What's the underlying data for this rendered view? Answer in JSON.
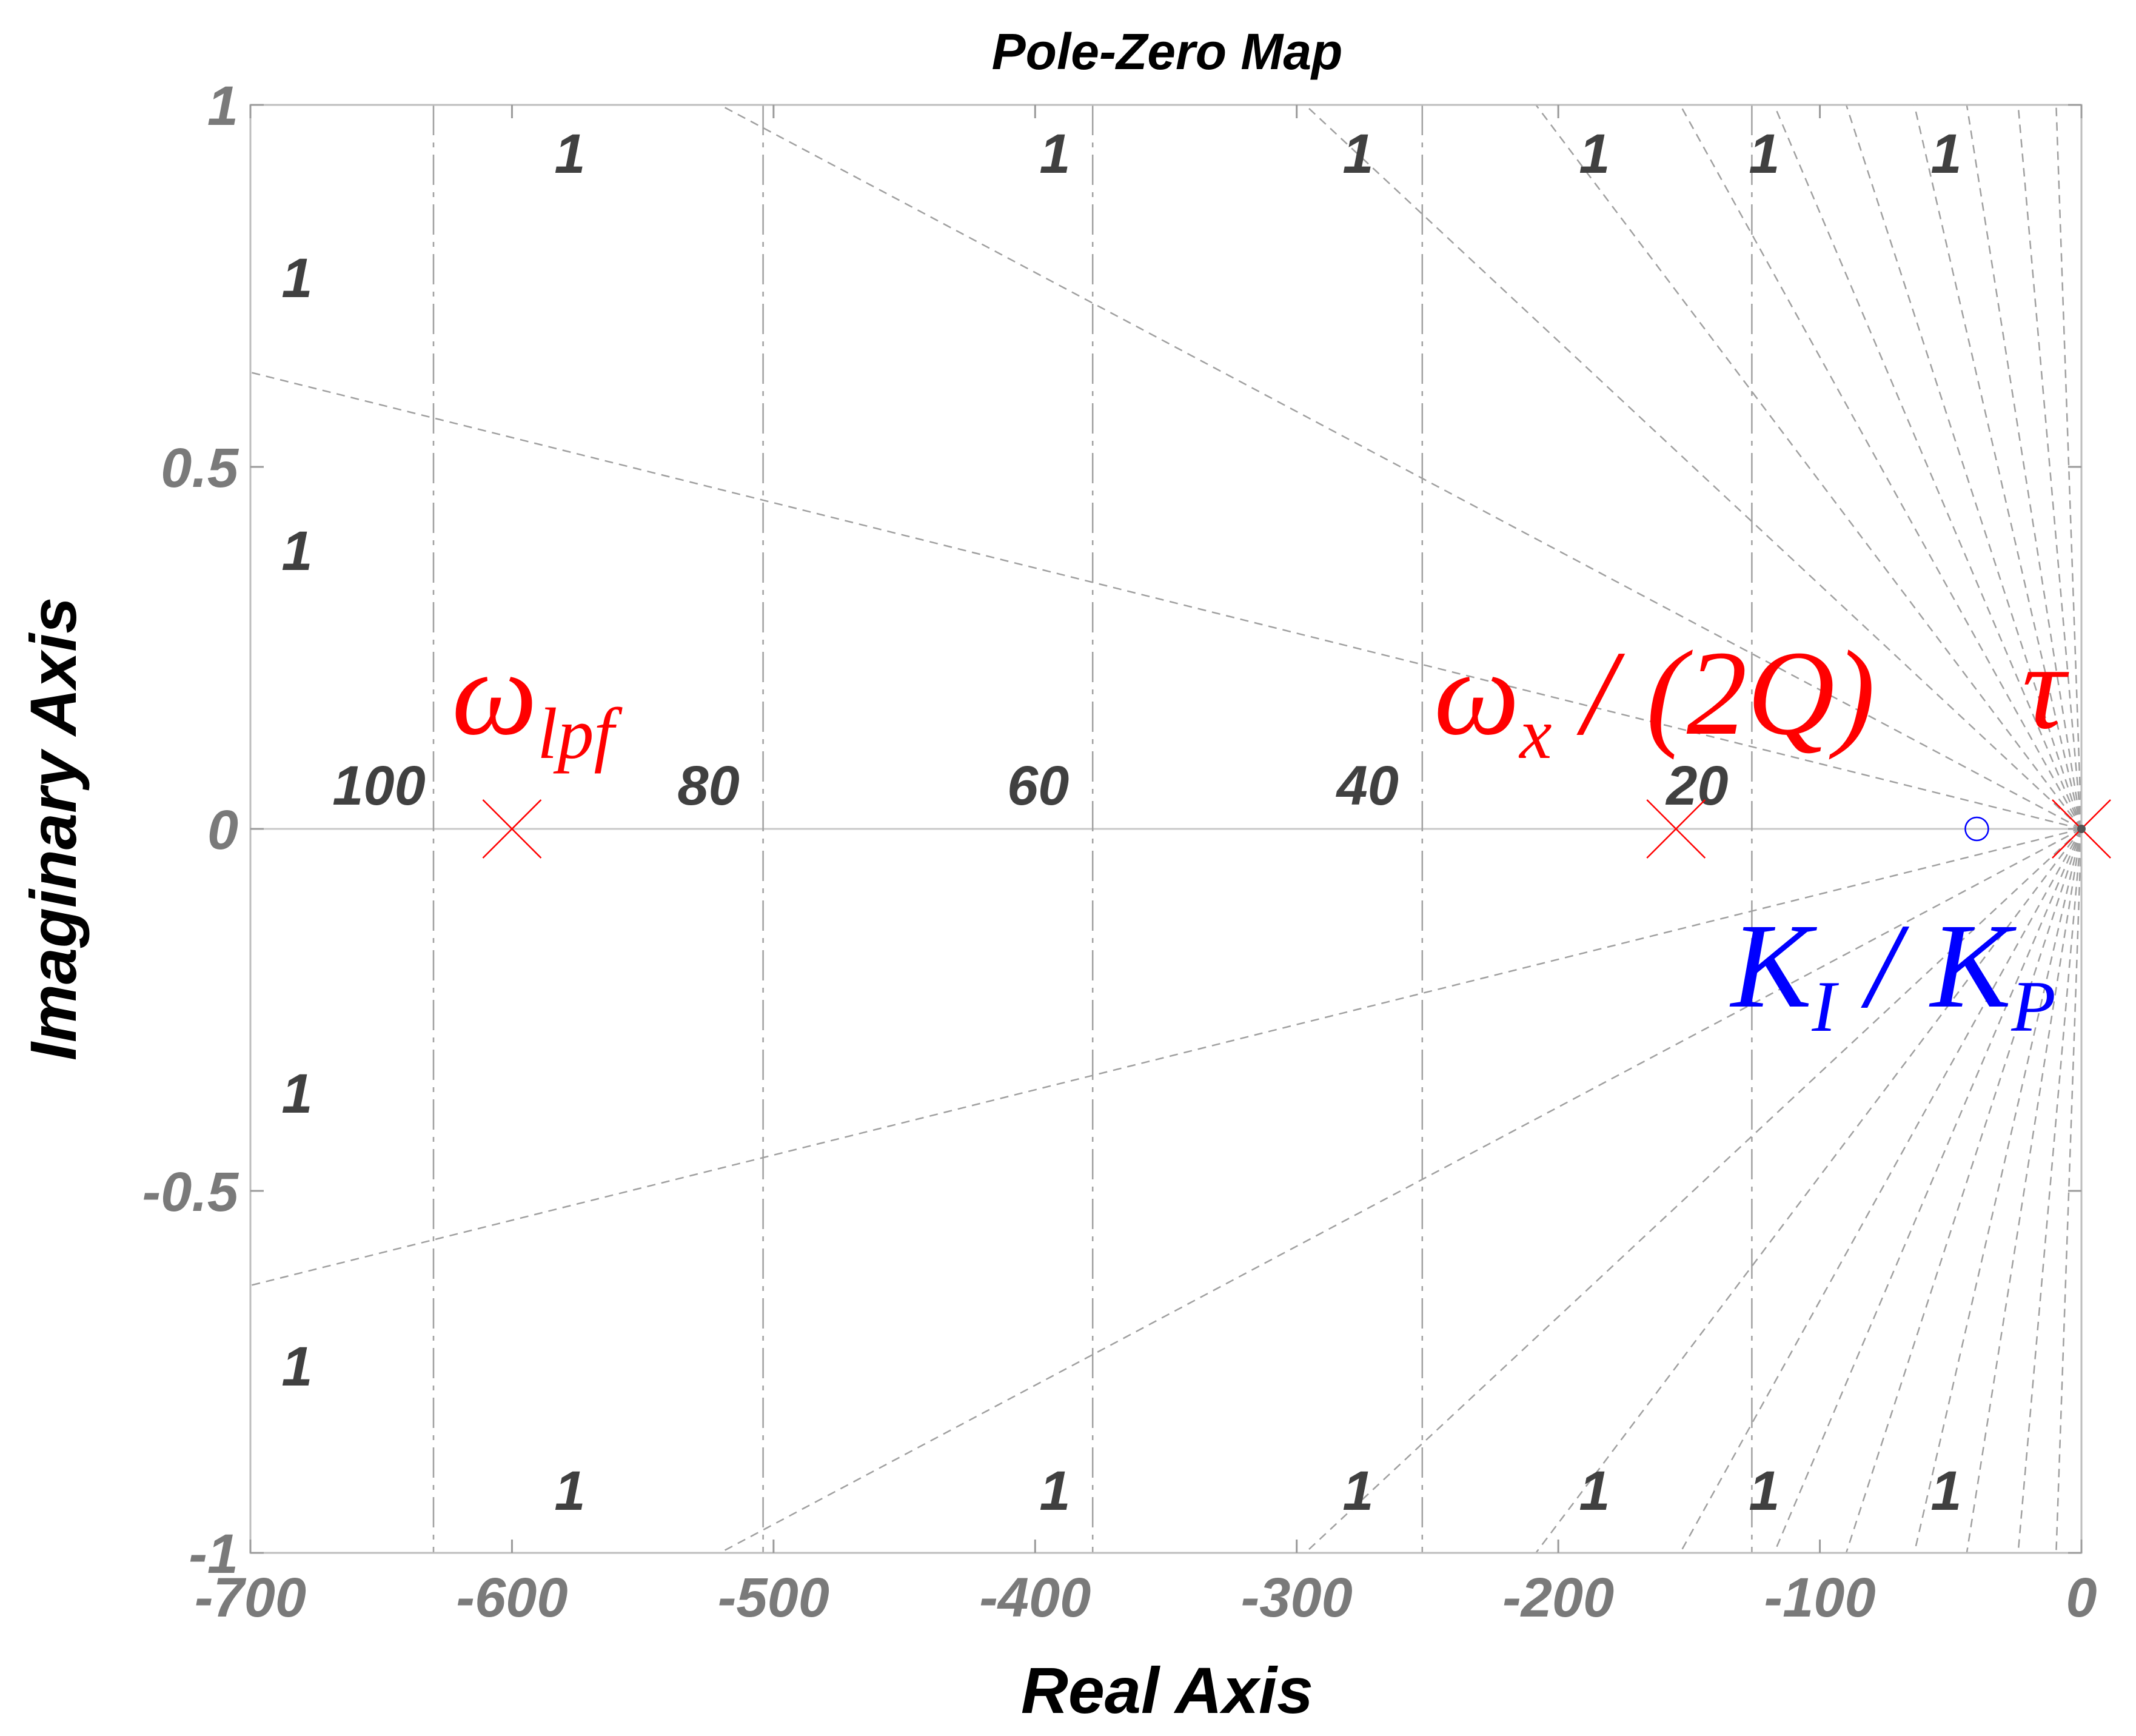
{
  "chart_data": {
    "type": "scatter",
    "title": "Pole-Zero Map",
    "xlabel": "Real Axis",
    "ylabel": "Imaginary Axis",
    "xlim": [
      -700,
      0
    ],
    "ylim": [
      -1,
      1
    ],
    "x_ticks": [
      -700,
      -600,
      -500,
      -400,
      -300,
      -200,
      -100,
      0
    ],
    "x_tick_labels": [
      "-700",
      "-600",
      "-500",
      "-400",
      "-300",
      "-200",
      "-100",
      "0"
    ],
    "y_ticks": [
      -1,
      -0.5,
      0,
      0.5,
      1
    ],
    "y_tick_labels": [
      "-1",
      "-0.5",
      "0",
      "0.5",
      "1"
    ],
    "grid": true,
    "poles": [
      {
        "x": -600,
        "y": 0
      },
      {
        "x": -155,
        "y": 0
      },
      {
        "x": 0,
        "y": 0
      }
    ],
    "zeros": [
      {
        "x": -40,
        "y": 0
      }
    ],
    "frequency_grid": [
      {
        "x": -630,
        "label": "100"
      },
      {
        "x": -504,
        "label": "80"
      },
      {
        "x": -378,
        "label": "60"
      },
      {
        "x": -252,
        "label": "40"
      },
      {
        "x": -126,
        "label": "20"
      }
    ],
    "damping_label": "1",
    "annotations": [
      {
        "id": "omega_lpf",
        "main": "ω",
        "sub": "lpf",
        "color": "#ff0000"
      },
      {
        "id": "omega_x_2q",
        "main": "ω",
        "sub": "x",
        "rest": " / (2Q)",
        "color": "#ff0000"
      },
      {
        "id": "tau",
        "main": "τ",
        "color": "#ff0000"
      },
      {
        "id": "ki_kp",
        "main": "K",
        "sub": "I",
        "rest": " / K",
        "sub2": "P",
        "color": "#0000ff"
      }
    ],
    "colors": {
      "pole": "#ff0000",
      "zero": "#0000ff",
      "grid": "#a0a0a0"
    }
  }
}
